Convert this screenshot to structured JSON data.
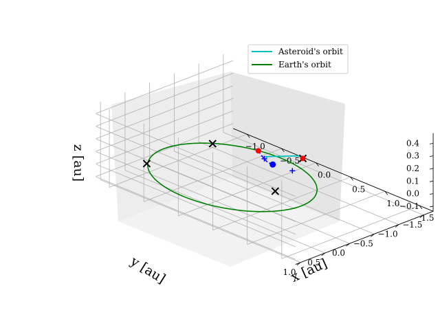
{
  "chart_data": {
    "type": "line3d",
    "title": "",
    "xlabel": "x [au]",
    "ylabel": "y [au]",
    "zlabel": "z [au]",
    "xlim": [
      -1.2,
      1.7
    ],
    "ylim": [
      -1.7,
      1.1
    ],
    "zlim": [
      -0.14,
      0.48
    ],
    "xticks": [
      "−1.0",
      "−0.5",
      "0.0",
      "0.5",
      "1.0",
      "1.5"
    ],
    "yticks": [
      "−1.5",
      "−1.0",
      "−0.5",
      "0.0",
      "0.5",
      "1.0"
    ],
    "zticks": [
      "−0.1",
      "0.0",
      "0.1",
      "0.2",
      "0.3",
      "0.4"
    ],
    "grid": true,
    "legend_position": "top-right",
    "series": [
      {
        "name": "Asteroid's orbit",
        "color": "#00bfbf"
      },
      {
        "name": "Earth's orbit",
        "color": "#008000"
      }
    ],
    "earth_orbit": {
      "radius": 1.0,
      "z": 0.0
    },
    "asteroid_orbit": {
      "x": [
        -0.1,
        0.0,
        0.1,
        0.2,
        0.35,
        0.5,
        0.65,
        0.8,
        0.95,
        1.1,
        1.2
      ],
      "y": [
        -0.85,
        -0.7,
        -0.55,
        -0.4,
        -0.3,
        -0.2,
        -0.1,
        0.0,
        0.1,
        0.2,
        0.25
      ],
      "z": [
        0.0,
        0.05,
        0.1,
        0.15,
        0.2,
        0.25,
        0.3,
        0.35,
        0.4,
        0.45,
        0.46
      ]
    },
    "transfer_path": {
      "x": [
        -0.3,
        -0.15,
        0.0,
        0.15,
        0.3
      ],
      "y": [
        -0.95,
        -0.8,
        -0.65,
        -0.5,
        -0.4
      ],
      "z": [
        0.0,
        0.02,
        0.05,
        0.08,
        0.11
      ]
    },
    "markers": {
      "black_x": [
        {
          "x": -0.85,
          "y": 0.55,
          "z": 0.0
        },
        {
          "x": -0.75,
          "y": -0.65,
          "z": 0.0
        },
        {
          "x": 0.55,
          "y": -0.1,
          "z": 0.0
        },
        {
          "x": 1.2,
          "y": 0.25,
          "z": 0.46
        }
      ],
      "red_dots": [
        {
          "x": -0.3,
          "y": -0.95,
          "z": 0.0
        },
        {
          "x": 1.2,
          "y": 0.25,
          "z": 0.46
        }
      ],
      "blue_dots": [
        {
          "x": 0.3,
          "y": -0.4,
          "z": 0.11
        }
      ],
      "blue_plus": [
        {
          "x": 0.0,
          "y": -0.65,
          "z": 0.05
        },
        {
          "x": 0.3,
          "y": -0.8,
          "z": 0.0
        }
      ]
    }
  }
}
